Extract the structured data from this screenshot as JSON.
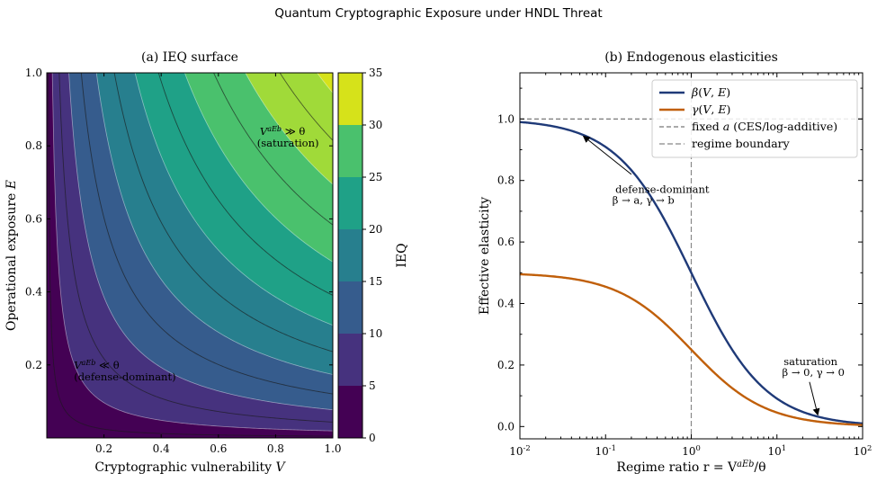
{
  "suptitle": "Quantum Cryptographic Exposure under HNDL Threat",
  "chart_data": [
    {
      "panel": "a",
      "type": "heatmap",
      "title": "(a) IEQ surface",
      "xlabel": "Cryptographic vulnerability V",
      "ylabel": "Operational exposure E",
      "colorbar_label": "IEQ",
      "xlim": [
        0,
        1.0
      ],
      "ylim": [
        0,
        1.0
      ],
      "xticks": [
        0.2,
        0.4,
        0.6,
        0.8,
        1.0
      ],
      "yticks": [
        0.2,
        0.4,
        0.6,
        0.8,
        1.0
      ],
      "colorbar_ticks": [
        0,
        5,
        10,
        15,
        20,
        25,
        30,
        35
      ],
      "contour_levels": [
        0,
        5,
        10,
        15,
        20,
        25,
        30,
        35
      ],
      "contour_colors": [
        "#440154",
        "#46327e",
        "#365c8d",
        "#277f8e",
        "#1fa187",
        "#4ac16d",
        "#a0da39",
        "#d6e21a"
      ],
      "model": {
        "a": 0.5,
        "b": 0.5,
        "scale": 36
      },
      "annotations": [
        {
          "line1": "V^aE^b ≪ θ",
          "line2": "(defense-dominant)",
          "at": [
            0.1,
            0.19
          ]
        },
        {
          "line1": "V^aE^b ≫ θ",
          "line2": "(saturation)",
          "at": [
            0.93,
            0.83
          ]
        }
      ]
    },
    {
      "panel": "b",
      "type": "line",
      "title": "(b) Endogenous elasticities",
      "xlabel": "Regime ratio r = V^aE^b/θ",
      "ylabel": "Effective elasticity",
      "xscale": "log",
      "xlim": [
        0.01,
        100
      ],
      "ylim": [
        -0.04,
        1.15
      ],
      "xticks": [
        "10^-2",
        "10^-1",
        "10^0",
        "10^1",
        "10^2"
      ],
      "yticks": [
        0.0,
        0.2,
        0.4,
        0.6,
        0.8,
        1.0
      ],
      "series": [
        {
          "name": "β(V, E)",
          "formula": "a0/(1+r)",
          "a0": 1.0,
          "color": "#1f3a78"
        },
        {
          "name": "γ(V, E)",
          "formula": "b0/(1+r)",
          "b0": 0.5,
          "color": "#c05f0a"
        }
      ],
      "reference_lines": [
        {
          "name": "fixed a (CES/log-additive)",
          "y": 1.0,
          "color": "#555555"
        },
        {
          "name": "regime boundary",
          "x": 1.0,
          "color": "#888888"
        }
      ],
      "annotations": [
        {
          "line1": "defense-dominant",
          "line2": "β → a, γ → b",
          "text_at": [
            0.22,
            0.8
          ],
          "arrow_to": [
            0.05,
            0.95
          ]
        },
        {
          "line1": "saturation",
          "line2": "β → 0, γ → 0",
          "text_at": [
            30,
            0.2
          ],
          "arrow_to": [
            30,
            0.035
          ]
        }
      ],
      "legend_loc": "upper-right"
    }
  ]
}
